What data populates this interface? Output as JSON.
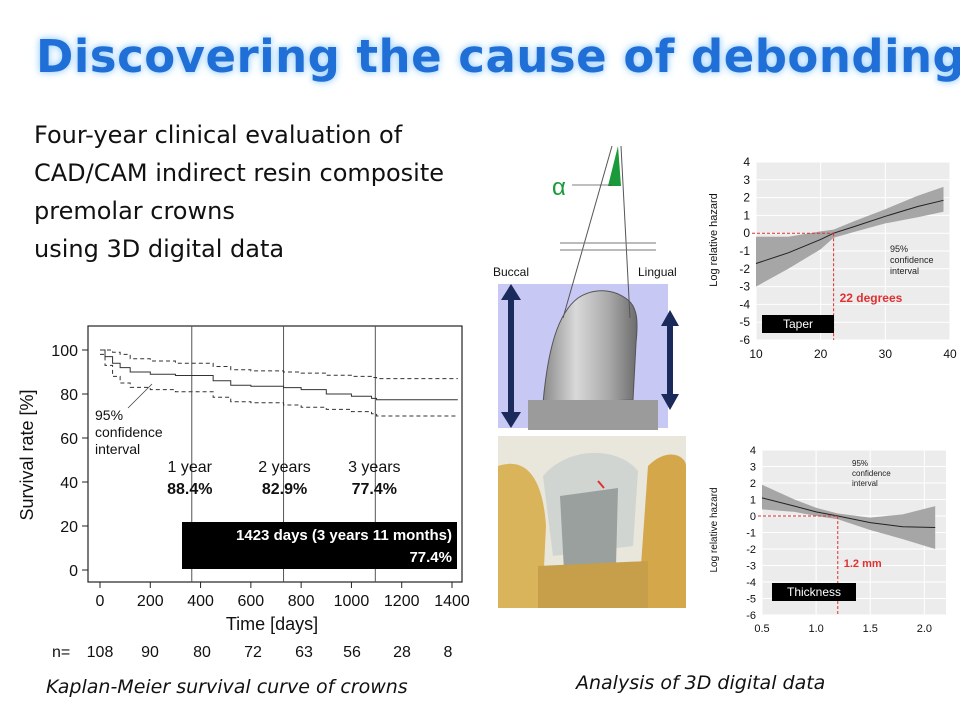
{
  "title": "Discovering the cause of debonding",
  "subtitle_lines": [
    "Four-year clinical evaluation of",
    "CAD/CAM indirect resin composite",
    "premolar crowns",
    "using 3D digital data"
  ],
  "captions": {
    "km": "Kaplan-Meier survival curve of crowns",
    "analysis": "Analysis of 3D digital data"
  },
  "diagram": {
    "alpha": "α",
    "buccal": "Buccal",
    "lingual": "Lingual"
  },
  "colors": {
    "title": "#1f6fd6",
    "crown_box": "#c8c8f5",
    "marker": "#e03030",
    "alpha_green": "#1a9a3a",
    "band_gray": "#a6a6a6"
  },
  "chart_data": [
    {
      "type": "line",
      "name": "km",
      "ylabel": "Survival rate [%]",
      "xlabel": "Time [days]",
      "xlim": [
        0,
        1400
      ],
      "ylim": [
        0,
        100
      ],
      "xticks": [
        0,
        200,
        400,
        600,
        800,
        1000,
        1200,
        1400
      ],
      "yticks": [
        0,
        20,
        40,
        60,
        80,
        100
      ],
      "ci_label": "95%\nconfidence\ninterval",
      "ci_lines": [
        "95%",
        "confidence",
        "interval"
      ],
      "survival": {
        "x": [
          0,
          20,
          50,
          80,
          120,
          200,
          300,
          365,
          450,
          520,
          600,
          730,
          800,
          900,
          1000,
          1080,
          1100,
          1423
        ],
        "y": [
          100,
          97,
          94,
          92,
          90,
          89,
          88.4,
          88.4,
          86,
          84,
          83.5,
          82.9,
          82,
          80,
          79,
          78,
          77.4,
          77.4
        ]
      },
      "upper": {
        "x": [
          0,
          20,
          50,
          80,
          120,
          200,
          300,
          365,
          450,
          520,
          600,
          730,
          800,
          900,
          1000,
          1080,
          1100,
          1423
        ],
        "y": [
          100,
          100,
          99,
          98,
          96,
          95,
          94,
          94,
          92.5,
          91,
          90.5,
          90,
          89.5,
          88.5,
          88,
          87.5,
          87,
          87
        ]
      },
      "lower": {
        "x": [
          0,
          20,
          50,
          80,
          120,
          200,
          300,
          365,
          450,
          520,
          600,
          730,
          800,
          900,
          1000,
          1080,
          1100,
          1423
        ],
        "y": [
          98,
          93,
          88,
          85,
          83,
          82,
          81,
          81,
          78.5,
          76.5,
          76,
          75,
          74,
          73,
          72,
          71,
          70,
          70
        ]
      },
      "year_lines": [
        365,
        730,
        1095
      ],
      "annotations": [
        {
          "label": "1 year",
          "value": "88.4%"
        },
        {
          "label": "2 years",
          "value": "82.9%"
        },
        {
          "label": "3 years",
          "value": "77.4%"
        }
      ],
      "final_box": {
        "line1": "1423 days (3 years 11 months)",
        "line2": "77.4%"
      },
      "n_at_risk": {
        "label": "n=",
        "values": [
          "108",
          "90",
          "80",
          "72",
          "63",
          "56",
          "28",
          "8"
        ]
      }
    },
    {
      "type": "line",
      "name": "taper",
      "ylabel": "Log relative hazard",
      "xlim": [
        10,
        40
      ],
      "ylim": [
        -6,
        4
      ],
      "xticks": [
        10,
        20,
        30,
        40
      ],
      "yticks": [
        4,
        3,
        2,
        1,
        0,
        -1,
        -2,
        -3,
        -4,
        -5,
        -6
      ],
      "x": [
        10,
        15,
        20,
        22,
        25,
        30,
        35,
        39
      ],
      "y": [
        -1.7,
        -1.1,
        -0.35,
        0,
        0.35,
        0.95,
        1.5,
        1.85
      ],
      "upper": [
        -0.2,
        -0.2,
        0.1,
        0.2,
        0.65,
        1.35,
        2.1,
        2.6
      ],
      "lower": [
        -3.0,
        -2.0,
        -0.9,
        -0.25,
        0.05,
        0.55,
        0.9,
        1.2
      ],
      "cutoff_x": 22,
      "cutoff_label": "22 degrees",
      "ci_lines": [
        "95%",
        "confidence",
        "interval"
      ],
      "badge": "Taper"
    },
    {
      "type": "line",
      "name": "thickness",
      "ylabel": "Log relative hazard",
      "xlim": [
        0.5,
        2.2
      ],
      "ylim": [
        -6,
        4
      ],
      "xticks": [
        0.5,
        1.0,
        1.5,
        2.0
      ],
      "yticks": [
        4,
        3,
        2,
        1,
        0,
        -1,
        -2,
        -3,
        -4,
        -5,
        -6
      ],
      "x": [
        0.5,
        0.8,
        1.0,
        1.2,
        1.5,
        1.8,
        2.1
      ],
      "y": [
        1.1,
        0.6,
        0.25,
        0,
        -0.4,
        -0.65,
        -0.7
      ],
      "upper": [
        1.9,
        1.0,
        0.5,
        0.15,
        -0.1,
        0.1,
        0.6
      ],
      "lower": [
        0.4,
        0.25,
        0.0,
        -0.2,
        -0.85,
        -1.4,
        -2.0
      ],
      "cutoff_x": 1.2,
      "cutoff_label": "1.2 mm",
      "ci_lines": [
        "95%",
        "confidence",
        "interval"
      ],
      "badge": "Thickness"
    }
  ]
}
